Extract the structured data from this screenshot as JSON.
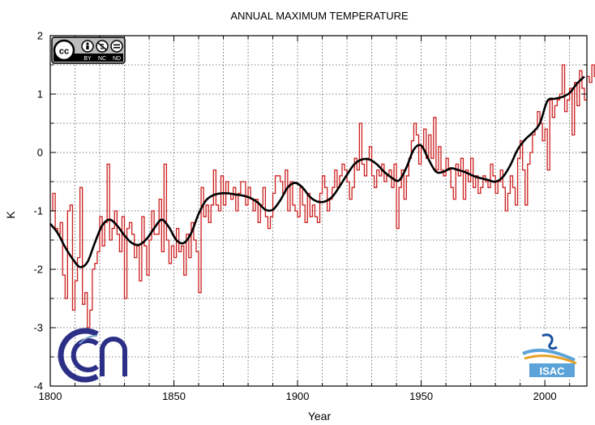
{
  "chart_data": {
    "type": "line",
    "title": "ANNUAL MAXIMUM TEMPERATURE",
    "xlabel": "Year",
    "ylabel": "K",
    "xlim": [
      1800,
      2017
    ],
    "ylim": [
      -4,
      2
    ],
    "x_ticks": [
      1800,
      1850,
      1900,
      1950,
      2000
    ],
    "x_tick_labels": [
      "1800",
      "1850",
      "1900",
      "1950",
      "2000"
    ],
    "y_ticks": [
      -4,
      -3,
      -2,
      -1,
      0,
      1,
      2
    ],
    "y_tick_labels": [
      "-4",
      "-3",
      "-2",
      "-1",
      "0",
      "1",
      "2"
    ],
    "grid": true,
    "colors": {
      "annual": "#cc1f1f",
      "smooth": "#000000",
      "grid": "#555555",
      "axis": "#000000"
    },
    "series": [
      {
        "name": "Annual anomaly",
        "style": "step",
        "x_start": 1800,
        "x_step": 1,
        "values": [
          -1.0,
          -0.7,
          -1.3,
          -1.4,
          -1.2,
          -2.1,
          -2.5,
          -1.0,
          -0.9,
          -2.7,
          -2.2,
          -1.8,
          -0.6,
          -2.6,
          -2.4,
          -3.0,
          -2.7,
          -2.0,
          -1.9,
          -1.7,
          -1.1,
          -1.6,
          -1.2,
          -0.2,
          -1.5,
          -1.3,
          -1.0,
          -1.4,
          -1.7,
          -1.1,
          -2.5,
          -1.3,
          -1.2,
          -1.4,
          -1.8,
          -1.6,
          -2.2,
          -1.1,
          -1.6,
          -2.1,
          -1.5,
          -1.0,
          -1.4,
          -1.4,
          -0.8,
          -1.7,
          -0.2,
          -1.5,
          -1.9,
          -1.6,
          -1.8,
          -1.3,
          -1.7,
          -1.6,
          -2.1,
          -1.4,
          -1.8,
          -1.2,
          -1.5,
          -1.7,
          -2.4,
          -0.6,
          -1.1,
          -0.9,
          -1.2,
          -0.9,
          -0.3,
          -0.9,
          -1.0,
          -0.4,
          -0.9,
          -0.5,
          -0.7,
          -0.8,
          -0.6,
          -1.0,
          -0.7,
          -0.5,
          -0.5,
          -0.9,
          -0.6,
          -0.8,
          -1.0,
          -0.8,
          -1.2,
          -0.9,
          -0.6,
          -1.1,
          -1.3,
          -1.1,
          -0.7,
          -0.4,
          -0.4,
          -0.5,
          -0.7,
          -0.3,
          -1.0,
          -0.5,
          -0.9,
          -1.0,
          -1.1,
          -0.6,
          -0.9,
          -1.2,
          -0.7,
          -1.1,
          -0.9,
          -1.1,
          -1.2,
          -0.7,
          -0.4,
          -0.6,
          -1.0,
          -0.8,
          -0.6,
          -0.3,
          -0.6,
          -0.4,
          -0.2,
          -0.3,
          -0.5,
          -0.8,
          -0.6,
          -0.1,
          -0.3,
          0.5,
          -0.2,
          -0.4,
          -0.1,
          0.1,
          -0.4,
          -0.6,
          -0.3,
          -0.4,
          -0.2,
          -0.5,
          -0.4,
          -0.3,
          -0.6,
          -0.2,
          -1.3,
          -0.6,
          -0.3,
          -0.8,
          -0.4,
          -0.1,
          0.2,
          0.5,
          0.3,
          -0.2,
          0.1,
          0.4,
          -0.1,
          0.3,
          -0.1,
          0.6,
          -0.3,
          0.1,
          -0.3,
          -0.4,
          -0.1,
          -0.3,
          -0.6,
          -0.8,
          -0.2,
          -0.4,
          -0.1,
          -0.8,
          -0.3,
          -0.5,
          -0.1,
          -0.6,
          -0.4,
          -0.7,
          -0.6,
          -0.4,
          -0.5,
          -0.6,
          -0.2,
          -0.4,
          -0.7,
          -0.5,
          -0.3,
          -0.6,
          -1.0,
          -0.7,
          -0.4,
          -0.6,
          -0.9,
          -0.1,
          0.2,
          -0.3,
          -0.9,
          -0.2,
          0.0,
          0.3,
          0.4,
          0.7,
          0.5,
          0.2,
          0.4,
          -0.3,
          0.9,
          0.6,
          0.8,
          0.9,
          1.0,
          1.5,
          0.7,
          0.9,
          1.1,
          0.3,
          1.2,
          0.8,
          1.4,
          1.1,
          0.9,
          1.3,
          1.2,
          1.5,
          1.3,
          1.4
        ]
      },
      {
        "name": "Smoothed",
        "style": "smooth",
        "x": [
          1800,
          1803,
          1806,
          1809,
          1812,
          1815,
          1818,
          1821,
          1824,
          1827,
          1830,
          1833,
          1836,
          1839,
          1842,
          1845,
          1848,
          1851,
          1854,
          1857,
          1860,
          1863,
          1866,
          1869,
          1872,
          1875,
          1878,
          1881,
          1884,
          1887,
          1890,
          1893,
          1896,
          1899,
          1902,
          1905,
          1908,
          1911,
          1914,
          1917,
          1920,
          1923,
          1926,
          1929,
          1932,
          1935,
          1938,
          1941,
          1944,
          1947,
          1950,
          1953,
          1956,
          1959,
          1962,
          1965,
          1968,
          1971,
          1974,
          1977,
          1980,
          1983,
          1986,
          1989,
          1992,
          1995,
          1998,
          2001,
          2004,
          2007,
          2010,
          2013,
          2016
        ],
        "values": [
          -1.22,
          -1.38,
          -1.62,
          -1.82,
          -1.96,
          -1.88,
          -1.55,
          -1.25,
          -1.15,
          -1.25,
          -1.42,
          -1.55,
          -1.58,
          -1.48,
          -1.3,
          -1.15,
          -1.28,
          -1.5,
          -1.55,
          -1.38,
          -1.05,
          -0.82,
          -0.73,
          -0.7,
          -0.7,
          -0.72,
          -0.74,
          -0.78,
          -0.86,
          -0.98,
          -0.98,
          -0.82,
          -0.6,
          -0.52,
          -0.6,
          -0.76,
          -0.84,
          -0.84,
          -0.76,
          -0.58,
          -0.38,
          -0.2,
          -0.12,
          -0.12,
          -0.2,
          -0.33,
          -0.43,
          -0.48,
          -0.26,
          0.05,
          0.12,
          -0.12,
          -0.33,
          -0.33,
          -0.27,
          -0.3,
          -0.34,
          -0.4,
          -0.44,
          -0.47,
          -0.5,
          -0.42,
          -0.22,
          0.05,
          0.22,
          0.34,
          0.5,
          0.88,
          0.92,
          0.95,
          1.02,
          1.18,
          1.3
        ]
      }
    ]
  },
  "logos": {
    "license_badge": {
      "primary": "cc",
      "row_labels": [
        "BY",
        "NC",
        "ND"
      ]
    },
    "cnr_logo": {
      "colors": [
        "#2c2f86",
        "#7aa0c8"
      ]
    },
    "isac_logo": {
      "text": "ISAC",
      "colors": [
        "#1a4fa0",
        "#5ba3d9",
        "#e8a126"
      ]
    }
  }
}
